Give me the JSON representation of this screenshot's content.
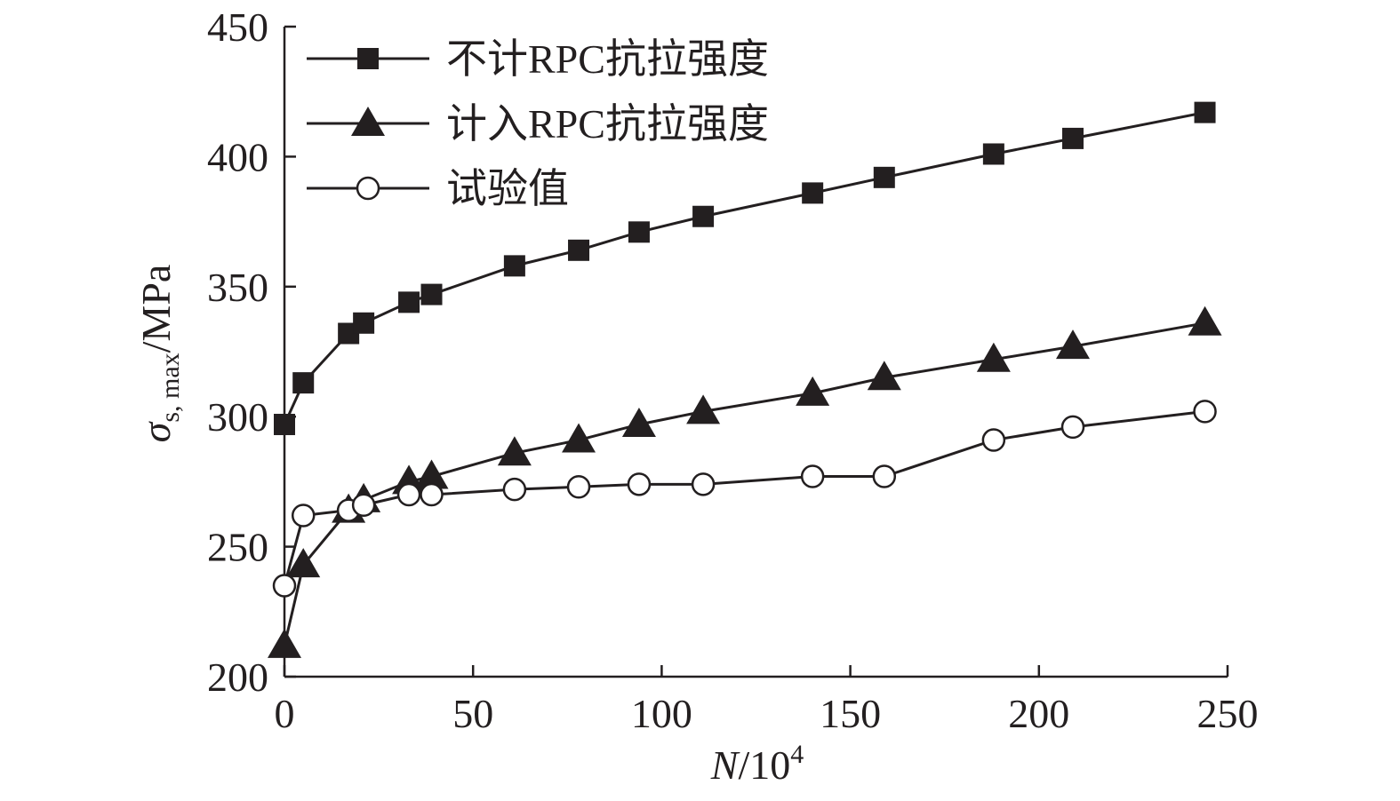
{
  "chart_data": {
    "type": "line",
    "xlabel": {
      "var": "N",
      "rest": "/10",
      "sup": "4"
    },
    "ylabel": {
      "sym": "σ",
      "sub": "s, max",
      "rest": "/MPa"
    },
    "xlim": [
      0,
      250
    ],
    "ylim": [
      200,
      450
    ],
    "xticks": [
      0,
      50,
      100,
      150,
      200,
      250
    ],
    "yticks": [
      200,
      250,
      300,
      350,
      400,
      450
    ],
    "grid": false,
    "legend_position": "top-left",
    "color": "#231f20",
    "series": [
      {
        "name": "不计RPC抗拉强度",
        "marker": "square-filled",
        "x": [
          0,
          5,
          17,
          21,
          33,
          39,
          61,
          78,
          94,
          111,
          140,
          159,
          188,
          209,
          244
        ],
        "y": [
          297,
          313,
          332,
          336,
          344,
          347,
          358,
          364,
          371,
          377,
          386,
          392,
          401,
          407,
          417
        ]
      },
      {
        "name": "计入RPC抗拉强度",
        "marker": "triangle-filled",
        "x": [
          0,
          5,
          17,
          21,
          33,
          39,
          61,
          78,
          94,
          111,
          140,
          159,
          188,
          209,
          244
        ],
        "y": [
          212,
          243,
          264,
          268,
          275,
          277,
          286,
          291,
          297,
          302,
          309,
          315,
          322,
          327,
          336
        ]
      },
      {
        "name": "试验值",
        "marker": "circle-open",
        "x": [
          0,
          5,
          17,
          21,
          33,
          39,
          61,
          78,
          94,
          111,
          140,
          159,
          188,
          209,
          244
        ],
        "y": [
          235,
          262,
          264,
          266,
          270,
          270,
          272,
          273,
          274,
          274,
          277,
          277,
          291,
          296,
          302
        ]
      }
    ]
  }
}
